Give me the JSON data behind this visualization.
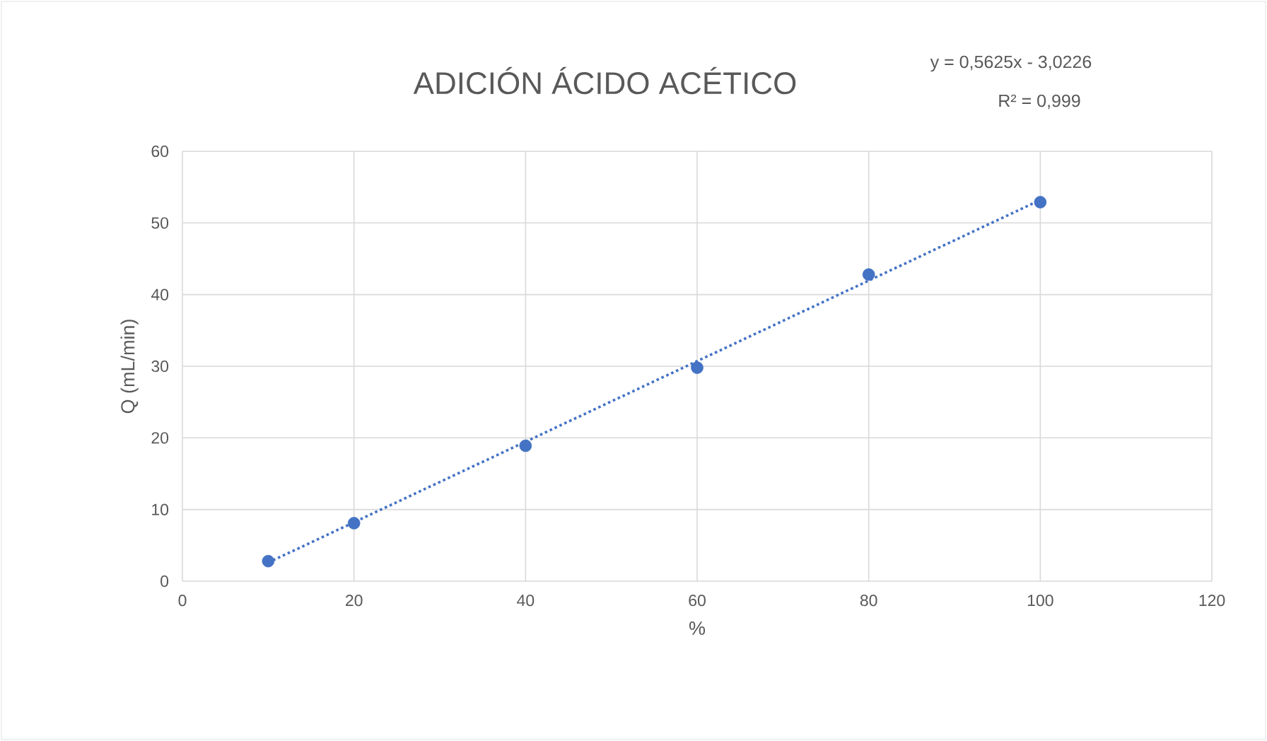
{
  "chart_data": {
    "type": "scatter",
    "title": "ADICIÓN ÁCIDO ACÉTICO",
    "xlabel": "%",
    "ylabel": "Q (mL/min)",
    "annotations": [
      "y = 0,5625x - 3,0226",
      "R² = 0,999"
    ],
    "series": [
      {
        "color": "#4472c4",
        "x": [
          10,
          20,
          40,
          60,
          80,
          100
        ],
        "values": [
          2.8,
          8.1,
          18.9,
          29.8,
          42.8,
          52.9
        ]
      },
      {
        "type": "line",
        "color": "#4472c4",
        "line_style": "dotted",
        "marker": "none",
        "x": [
          10,
          100
        ],
        "values": [
          2.6,
          53.2
        ]
      }
    ],
    "xlim": [
      0,
      120
    ],
    "xticks": [
      0,
      20,
      40,
      60,
      80,
      100,
      120
    ],
    "ylim": [
      0,
      60
    ],
    "yticks": [
      0,
      10,
      20,
      30,
      40,
      50,
      60
    ],
    "grid": true,
    "marker": "circle"
  }
}
